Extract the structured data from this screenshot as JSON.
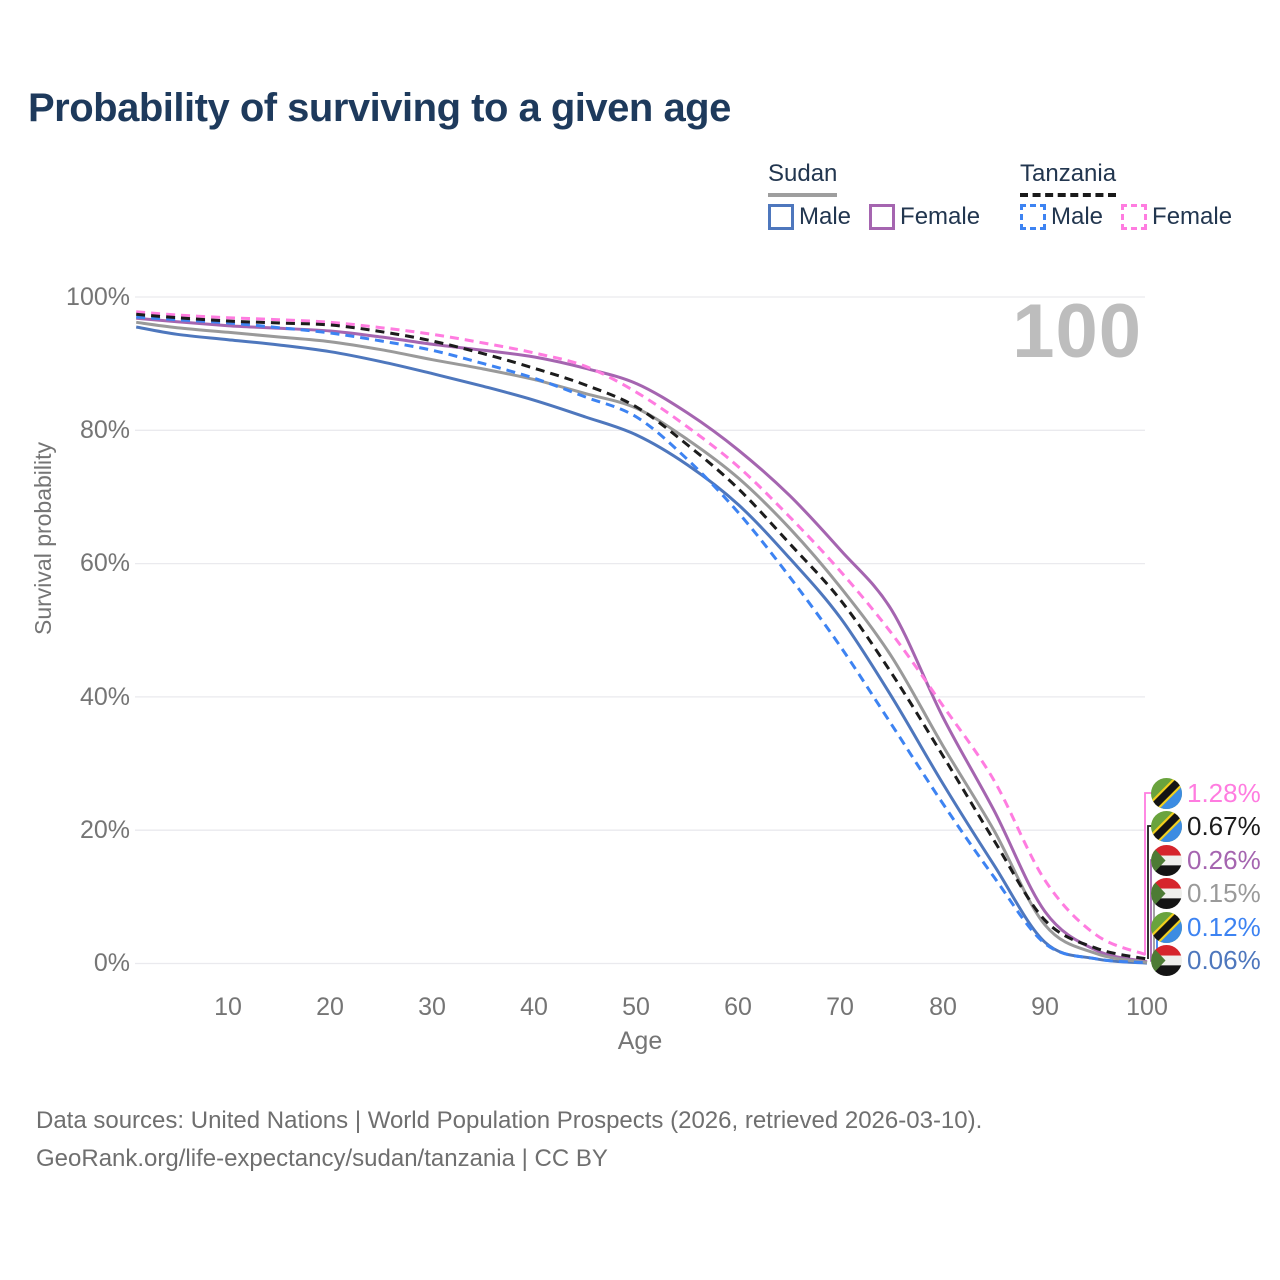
{
  "title": "Probability of surviving to a given age",
  "watermark_age": "100",
  "legend": {
    "groups": [
      {
        "name": "Sudan",
        "line_style": "solid",
        "underline_color": "#9e9e9e",
        "items": [
          {
            "label": "Male",
            "color": "#4e77bd",
            "dashed": false
          },
          {
            "label": "Female",
            "color": "#a565b0",
            "dashed": false
          }
        ]
      },
      {
        "name": "Tanzania",
        "line_style": "dashed",
        "underline_color": "#1a1a1a",
        "items": [
          {
            "label": "Male",
            "color": "#3d83f2",
            "dashed": true
          },
          {
            "label": "Female",
            "color": "#ff7ce0",
            "dashed": true
          }
        ]
      }
    ]
  },
  "axes": {
    "y": {
      "title": "Survival probability",
      "ticks": [
        "100%",
        "80%",
        "60%",
        "40%",
        "20%",
        "0%"
      ]
    },
    "x": {
      "title": "Age",
      "ticks": [
        "10",
        "20",
        "30",
        "40",
        "50",
        "60",
        "70",
        "80",
        "90",
        "100"
      ]
    }
  },
  "chart_data": {
    "type": "line",
    "title": "Probability of surviving to a given age",
    "xlabel": "Age",
    "ylabel": "Survival probability",
    "xlim": [
      0,
      100
    ],
    "ylim": [
      0,
      100
    ],
    "grid": "horizontal",
    "legend_position": "top-right",
    "x": [
      1,
      5,
      10,
      15,
      20,
      25,
      30,
      35,
      40,
      45,
      50,
      55,
      60,
      65,
      70,
      75,
      80,
      85,
      90,
      95,
      100
    ],
    "series": [
      {
        "name": "Sudan Male",
        "key": "sudan_male",
        "color": "#4e77bd",
        "dash": "solid",
        "values": [
          95.5,
          94.4,
          93.6,
          92.8,
          91.8,
          90.3,
          88.5,
          86.6,
          84.5,
          82.0,
          79.3,
          74.8,
          68.8,
          60.8,
          51.8,
          40.0,
          27.0,
          14.8,
          3.2,
          0.7,
          0.06
        ]
      },
      {
        "name": "Sudan Female",
        "key": "sudan_female",
        "color": "#a565b0",
        "dash": "solid",
        "values": [
          96.8,
          96.3,
          95.7,
          95.3,
          94.9,
          94.0,
          92.9,
          92.0,
          91.0,
          89.3,
          87.0,
          82.6,
          77.0,
          70.2,
          62.0,
          53.0,
          37.0,
          23.0,
          7.8,
          2.0,
          0.26
        ]
      },
      {
        "name": "Sudan All",
        "key": "sudan_all",
        "color": "#9a9a9a",
        "dash": "solid",
        "values": [
          96.2,
          95.4,
          94.7,
          94.0,
          93.3,
          92.1,
          90.6,
          89.2,
          87.6,
          85.5,
          83.3,
          78.6,
          72.8,
          65.3,
          56.4,
          46.0,
          32.7,
          20.0,
          5.8,
          1.5,
          0.15
        ]
      },
      {
        "name": "Tanzania Male",
        "key": "tanzania_male",
        "color": "#3d83f2",
        "dash": "dashed",
        "values": [
          97.0,
          96.6,
          96.1,
          95.4,
          94.6,
          93.4,
          92.0,
          90.0,
          87.8,
          85.0,
          82.0,
          75.6,
          67.6,
          58.0,
          47.5,
          35.8,
          24.0,
          13.0,
          3.0,
          0.7,
          0.12
        ]
      },
      {
        "name": "Tanzania Female",
        "key": "tanzania_female",
        "color": "#ff7ce0",
        "dash": "dashed",
        "values": [
          97.8,
          97.3,
          96.9,
          96.6,
          96.2,
          95.4,
          94.4,
          93.1,
          91.6,
          89.6,
          85.7,
          80.5,
          74.5,
          67.0,
          58.8,
          49.5,
          38.7,
          27.5,
          12.5,
          4.3,
          1.28
        ]
      },
      {
        "name": "Tanzania All",
        "key": "tanzania_all",
        "color": "#1c1c1c",
        "dash": "dashed",
        "values": [
          97.4,
          96.9,
          96.4,
          96.1,
          95.8,
          94.8,
          93.4,
          91.5,
          89.3,
          86.8,
          83.5,
          77.8,
          71.2,
          63.0,
          54.5,
          43.5,
          31.2,
          18.5,
          6.5,
          2.3,
          0.67
        ]
      }
    ]
  },
  "endpoints": [
    {
      "value": "1.28%",
      "flag": "tanzania",
      "series": "tanzania_female",
      "color": "#ff7ce0"
    },
    {
      "value": "0.67%",
      "flag": "tanzania",
      "series": "tanzania_all",
      "color": "#1c1c1c"
    },
    {
      "value": "0.26%",
      "flag": "sudan",
      "series": "sudan_female",
      "color": "#a565b0"
    },
    {
      "value": "0.15%",
      "flag": "sudan",
      "series": "sudan_all",
      "color": "#9a9a9a"
    },
    {
      "value": "0.12%",
      "flag": "tanzania",
      "series": "tanzania_male",
      "color": "#3d83f2"
    },
    {
      "value": "0.06%",
      "flag": "sudan",
      "series": "sudan_male",
      "color": "#4e77bd"
    }
  ],
  "footer": {
    "line1": "Data sources: United Nations | World Population Prospects (2026, retrieved 2026-03-10).",
    "line2": "GeoRank.org/life-expectancy/sudan/tanzania | CC BY"
  }
}
